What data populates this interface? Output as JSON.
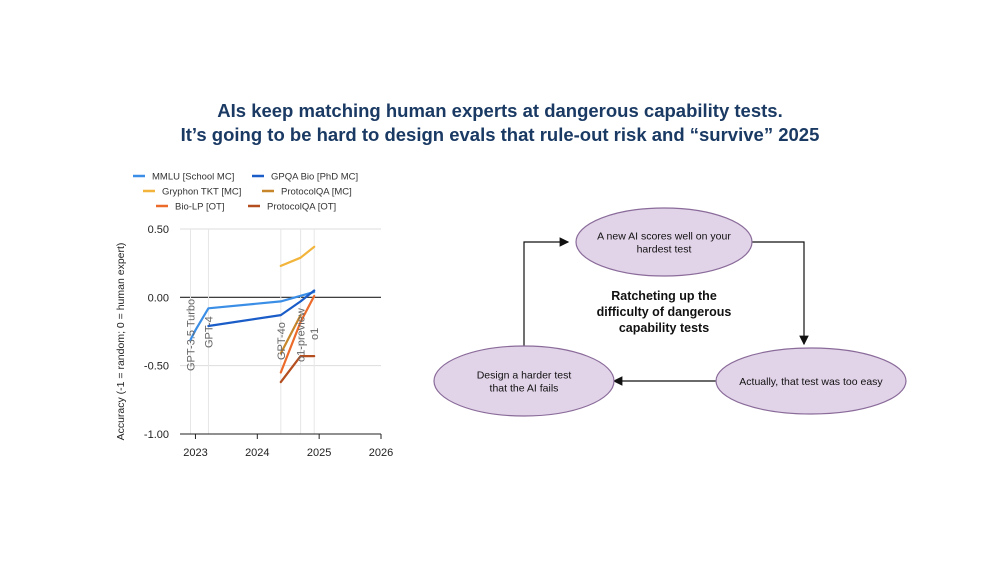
{
  "title": {
    "line1": "AIs keep matching human experts at dangerous capability tests.",
    "line2": "It’s going to be hard to design evals that rule-out risk and “survive” 2025"
  },
  "chart_data": {
    "type": "line",
    "ylabel": "Accuracy (-1 = random; 0 = human expert)",
    "xlim": [
      2022.75,
      2026
    ],
    "ylim": [
      -1.0,
      0.5
    ],
    "x_ticks": [
      2023,
      2024,
      2025,
      2026
    ],
    "y_ticks": [
      0.5,
      0.0,
      -0.5,
      -1.0
    ],
    "y_tick_labels": [
      "0.50",
      "0.00",
      "-0.50",
      "-1.00"
    ],
    "legend_position": "top",
    "series": [
      {
        "name": "MMLU [School MC]",
        "color": "#3b8ee6",
        "x": [
          2022.92,
          2023.0,
          2023.21,
          2024.38,
          2024.92
        ],
        "y": [
          -0.31,
          -0.24,
          -0.08,
          -0.03,
          0.04
        ]
      },
      {
        "name": "GPQA Bio [PhD MC]",
        "color": "#1a5cc8",
        "x": [
          2023.21,
          2024.38,
          2024.7,
          2024.92
        ],
        "y": [
          -0.21,
          -0.13,
          -0.03,
          0.05
        ]
      },
      {
        "name": "Gryphon TKT [MC]",
        "color": "#f2b43a",
        "x": [
          2024.38,
          2024.7,
          2024.92
        ],
        "y": [
          0.23,
          0.29,
          0.37
        ]
      },
      {
        "name": "ProtocolQA [MC]",
        "color": "#c8862a",
        "x": [
          2024.38,
          2024.7
        ],
        "y": [
          -0.41,
          -0.13
        ]
      },
      {
        "name": "Bio-LP [OT]",
        "color": "#ec6a2a",
        "x": [
          2024.38,
          2024.7,
          2024.92
        ],
        "y": [
          -0.55,
          -0.18,
          0.01
        ]
      },
      {
        "name": "ProtocolQA [OT]",
        "color": "#b44e1e",
        "x": [
          2024.38,
          2024.7,
          2024.92
        ],
        "y": [
          -0.62,
          -0.43,
          -0.43
        ]
      }
    ],
    "model_releases": [
      {
        "label": "GPT-3.5 Turbo",
        "x": 2022.92
      },
      {
        "label": "GPT-4",
        "x": 2023.21
      },
      {
        "label": "GPT-4o",
        "x": 2024.38
      },
      {
        "label": "o1-preview",
        "x": 2024.7
      },
      {
        "label": "o1",
        "x": 2024.92
      }
    ]
  },
  "diagram": {
    "center_label": [
      "Ratcheting up the",
      "difficulty of dangerous",
      "capability tests"
    ],
    "nodes": [
      {
        "label": [
          "A new AI scores well on your",
          "hardest test"
        ]
      },
      {
        "label": [
          "Actually, that test was too easy"
        ]
      },
      {
        "label": [
          "Design a harder test",
          "that the AI fails"
        ]
      }
    ],
    "node_fill": "#e1d3e8",
    "node_stroke": "#8a6b9a"
  },
  "colors": {
    "title": "#1a3a64",
    "gridline": "#dddddd",
    "zero_line": "#222222"
  }
}
